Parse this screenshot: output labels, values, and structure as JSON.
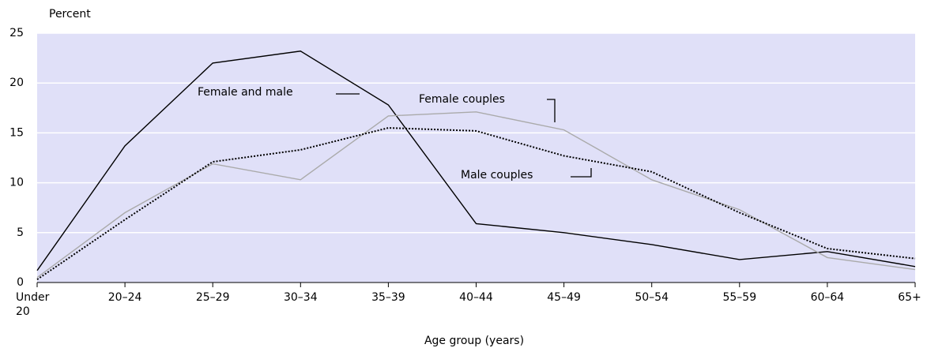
{
  "chart_data": {
    "type": "line",
    "y_label": "Percent",
    "x_label": "Age group (years)",
    "categories": [
      "Under 20",
      "20–24",
      "25–29",
      "30–34",
      "35–39",
      "40–44",
      "45–49",
      "50–54",
      "55–59",
      "60–64",
      "65+"
    ],
    "series": [
      {
        "name": "Female and male",
        "color": "#000000",
        "dash": "solid",
        "values": [
          1.2,
          13.7,
          22.0,
          23.2,
          17.8,
          5.9,
          5.0,
          3.8,
          2.3,
          3.1,
          1.6
        ]
      },
      {
        "name": "Female couples",
        "color": "#aaaaaa",
        "dash": "solid",
        "values": [
          0.5,
          7.0,
          11.9,
          10.3,
          16.7,
          17.1,
          15.3,
          10.3,
          7.3,
          2.5,
          1.3
        ]
      },
      {
        "name": "Male couples",
        "color": "#000000",
        "dash": "dotted",
        "values": [
          0.3,
          6.3,
          12.1,
          13.3,
          15.5,
          15.2,
          12.7,
          11.1,
          7.0,
          3.4,
          2.4
        ]
      }
    ],
    "ylim": [
      0,
      25
    ],
    "yticks": [
      0,
      5,
      10,
      15,
      20,
      25
    ],
    "grid": true
  }
}
